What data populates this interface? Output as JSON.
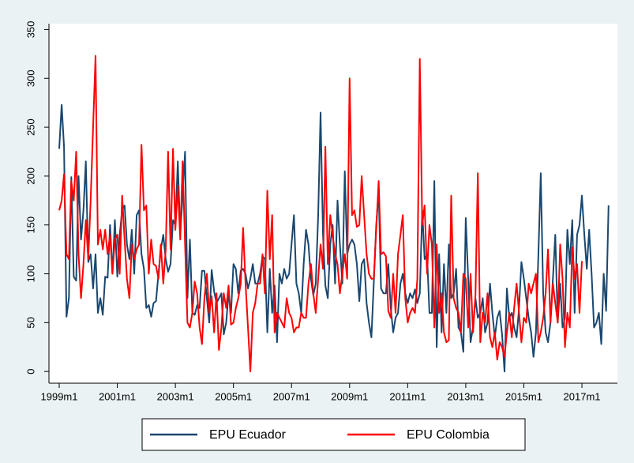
{
  "chart_data": {
    "type": "line",
    "categories": [
      "1999m1",
      null,
      null,
      null,
      null,
      null,
      null,
      null,
      null,
      null,
      null,
      null,
      null,
      null,
      null,
      null,
      null,
      null,
      null,
      null,
      null,
      null,
      null,
      null,
      "2001m1",
      null,
      null,
      null,
      null,
      null,
      null,
      null,
      null,
      null,
      null,
      null,
      null,
      null,
      null,
      null,
      null,
      null,
      null,
      null,
      null,
      null,
      null,
      null,
      "2003m1",
      null,
      null,
      null,
      null,
      null,
      null,
      null,
      null,
      null,
      null,
      null,
      null,
      null,
      null,
      null,
      null,
      null,
      null,
      null,
      null,
      null,
      null,
      null,
      "2005m1",
      null,
      null,
      null,
      null,
      null,
      null,
      null,
      null,
      null,
      null,
      null,
      null,
      null,
      null,
      null,
      null,
      null,
      null,
      null,
      null,
      null,
      null,
      null,
      "2007m1",
      null,
      null,
      null,
      null,
      null,
      null,
      null,
      null,
      null,
      null,
      null,
      null,
      null,
      null,
      null,
      null,
      null,
      null,
      null,
      null,
      null,
      null,
      null,
      "2009m1",
      null,
      null,
      null,
      null,
      null,
      null,
      null,
      null,
      null,
      null,
      null,
      null,
      null,
      null,
      null,
      null,
      null,
      null,
      null,
      null,
      null,
      null,
      null,
      "2011m1",
      null,
      null,
      null,
      null,
      null,
      null,
      null,
      null,
      null,
      null,
      null,
      null,
      null,
      null,
      null,
      null,
      null,
      null,
      null,
      null,
      null,
      null,
      null,
      "2013m1",
      null,
      null,
      null,
      null,
      null,
      null,
      null,
      null,
      null,
      null,
      null,
      null,
      null,
      null,
      null,
      null,
      null,
      null,
      null,
      null,
      null,
      null,
      null,
      "2015m1",
      null,
      null,
      null,
      null,
      null,
      null,
      null,
      null,
      null,
      null,
      null,
      null,
      null,
      null,
      null,
      null,
      null,
      null,
      null,
      null,
      null,
      null,
      null,
      "2017m1",
      null,
      null,
      null,
      null,
      null,
      null,
      null,
      null,
      null,
      null,
      null
    ],
    "series": [
      {
        "name": "EPU Ecuador",
        "color": "#1a476f",
        "values": [
          228,
          273,
          230,
          56,
          75,
          199,
          97,
          93,
          200,
          135,
          165,
          215,
          112,
          120,
          85,
          120,
          60,
          75,
          58,
          97,
          96,
          150,
          100,
          155,
          97,
          140,
          165,
          170,
          130,
          115,
          145,
          100,
          160,
          165,
          120,
          105,
          65,
          68,
          56,
          70,
          72,
          100,
          125,
          140,
          115,
          102,
          110,
          155,
          150,
          215,
          140,
          180,
          225,
          75,
          135,
          60,
          58,
          68,
          65,
          103,
          103,
          75,
          50,
          104,
          82,
          70,
          75,
          80,
          38,
          50,
          80,
          60,
          110,
          105,
          80,
          103,
          105,
          100,
          85,
          95,
          110,
          90,
          90,
          100,
          118,
          115,
          40,
          105,
          60,
          88,
          30,
          100,
          90,
          105,
          95,
          100,
          130,
          160,
          90,
          80,
          60,
          110,
          145,
          130,
          95,
          78,
          90,
          160,
          265,
          140,
          88,
          75,
          130,
          150,
          90,
          175,
          130,
          90,
          205,
          120,
          130,
          135,
          130,
          110,
          72,
          110,
          115,
          70,
          50,
          35,
          90,
          150,
          185,
          85,
          80,
          80,
          110,
          65,
          40,
          55,
          60,
          90,
          100,
          80,
          70,
          80,
          75,
          84,
          70,
          80,
          165,
          115,
          120,
          60,
          60,
          195,
          25,
          120,
          40,
          110,
          60,
          130,
          75,
          80,
          105,
          45,
          40,
          20,
          157,
          95,
          30,
          45,
          75,
          55,
          60,
          75,
          40,
          50,
          90,
          60,
          35,
          55,
          62,
          38,
          0,
          85,
          55,
          60,
          45,
          35,
          65,
          112,
          95,
          75,
          55,
          40,
          15,
          40,
          120,
          203,
          80,
          40,
          30,
          50,
          95,
          140,
          50,
          90,
          45,
          55,
          145,
          110,
          155,
          60,
          140,
          150,
          180,
          140,
          105,
          145,
          100,
          45,
          50,
          60,
          28,
          100,
          62,
          170
        ]
      },
      {
        "name": "EPU Colombia",
        "color": "#ff0000",
        "values": [
          165,
          175,
          202,
          120,
          115,
          195,
          175,
          225,
          120,
          75,
          110,
          155,
          115,
          175,
          250,
          323,
          130,
          145,
          125,
          145,
          120,
          140,
          100,
          135,
          140,
          100,
          180,
          135,
          95,
          75,
          130,
          115,
          125,
          130,
          232,
          165,
          170,
          100,
          135,
          110,
          108,
          95,
          130,
          90,
          125,
          225,
          125,
          228,
          145,
          190,
          135,
          215,
          130,
          50,
          45,
          60,
          92,
          80,
          45,
          28,
          75,
          100,
          60,
          77,
          40,
          80,
          22,
          45,
          80,
          65,
          88,
          48,
          50,
          65,
          75,
          90,
          147,
          90,
          45,
          0,
          60,
          70,
          90,
          90,
          120,
          80,
          185,
          115,
          160,
          40,
          60,
          55,
          50,
          45,
          75,
          60,
          55,
          40,
          45,
          45,
          60,
          55,
          55,
          90,
          110,
          80,
          60,
          95,
          130,
          105,
          230,
          110,
          160,
          140,
          120,
          110,
          80,
          100,
          120,
          95,
          300,
          160,
          165,
          148,
          150,
          200,
          160,
          120,
          100,
          95,
          95,
          145,
          195,
          120,
          122,
          118,
          62,
          55,
          100,
          60,
          120,
          140,
          160,
          75,
          50,
          60,
          65,
          60,
          95,
          320,
          150,
          170,
          100,
          150,
          130,
          45,
          130,
          60,
          80,
          40,
          30,
          32,
          180,
          75,
          65,
          60,
          40,
          100,
          95,
          45,
          100,
          40,
          78,
          203,
          30,
          60,
          50,
          80,
          35,
          25,
          40,
          12,
          30,
          25,
          15,
          40,
          60,
          35,
          65,
          90,
          60,
          30,
          55,
          50,
          90,
          80,
          90,
          100,
          30,
          40,
          55,
          80,
          125,
          50,
          90,
          70,
          50,
          130,
          95,
          25,
          60,
          45,
          127,
          95,
          110,
          60,
          113,
          null,
          null,
          null,
          null,
          null,
          null,
          null,
          null,
          null,
          null,
          null
        ]
      }
    ],
    "ylim": [
      -12,
      356
    ],
    "yticks": [
      0,
      50,
      100,
      150,
      200,
      250,
      300,
      350
    ],
    "legend": "bottom"
  }
}
